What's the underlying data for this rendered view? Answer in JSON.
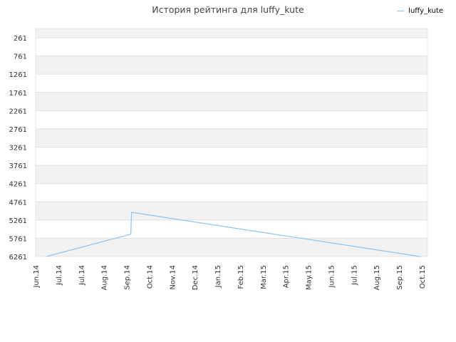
{
  "chart_data": {
    "type": "line",
    "title": "История рейтинга для luffy_kute",
    "xlabel": "",
    "ylabel": "",
    "y_axis": {
      "reversed": true,
      "ylim": [
        6261,
        261
      ],
      "ticks": [
        261,
        761,
        1261,
        1761,
        2261,
        2761,
        3261,
        3761,
        4261,
        4761,
        5261,
        5761,
        6261
      ]
    },
    "x_axis": {
      "tick_labels": [
        "Jun.14",
        "Jul.14",
        "Jul.14",
        "Aug.14",
        "Sep.14",
        "Oct.14",
        "Nov.14",
        "Dec.14",
        "Jan.15",
        "Feb.15",
        "Mar.15",
        "Apr.15",
        "May.15",
        "Jun.15",
        "Jul.15",
        "Aug.15",
        "Sep.15",
        "Oct.15"
      ]
    },
    "series": [
      {
        "name": "luffy_kute",
        "color": "#8ec3ee",
        "points": [
          {
            "x": "2014-06-15",
            "y": 6261
          },
          {
            "x": "2014-10-03",
            "y": 5650
          },
          {
            "x": "2014-10-04",
            "y": 5050
          },
          {
            "x": "2015-10-15",
            "y": 6261
          }
        ]
      }
    ],
    "grid": true,
    "legend": "top-right",
    "band_colors": [
      "#f2f2f2",
      "#ffffff"
    ]
  }
}
